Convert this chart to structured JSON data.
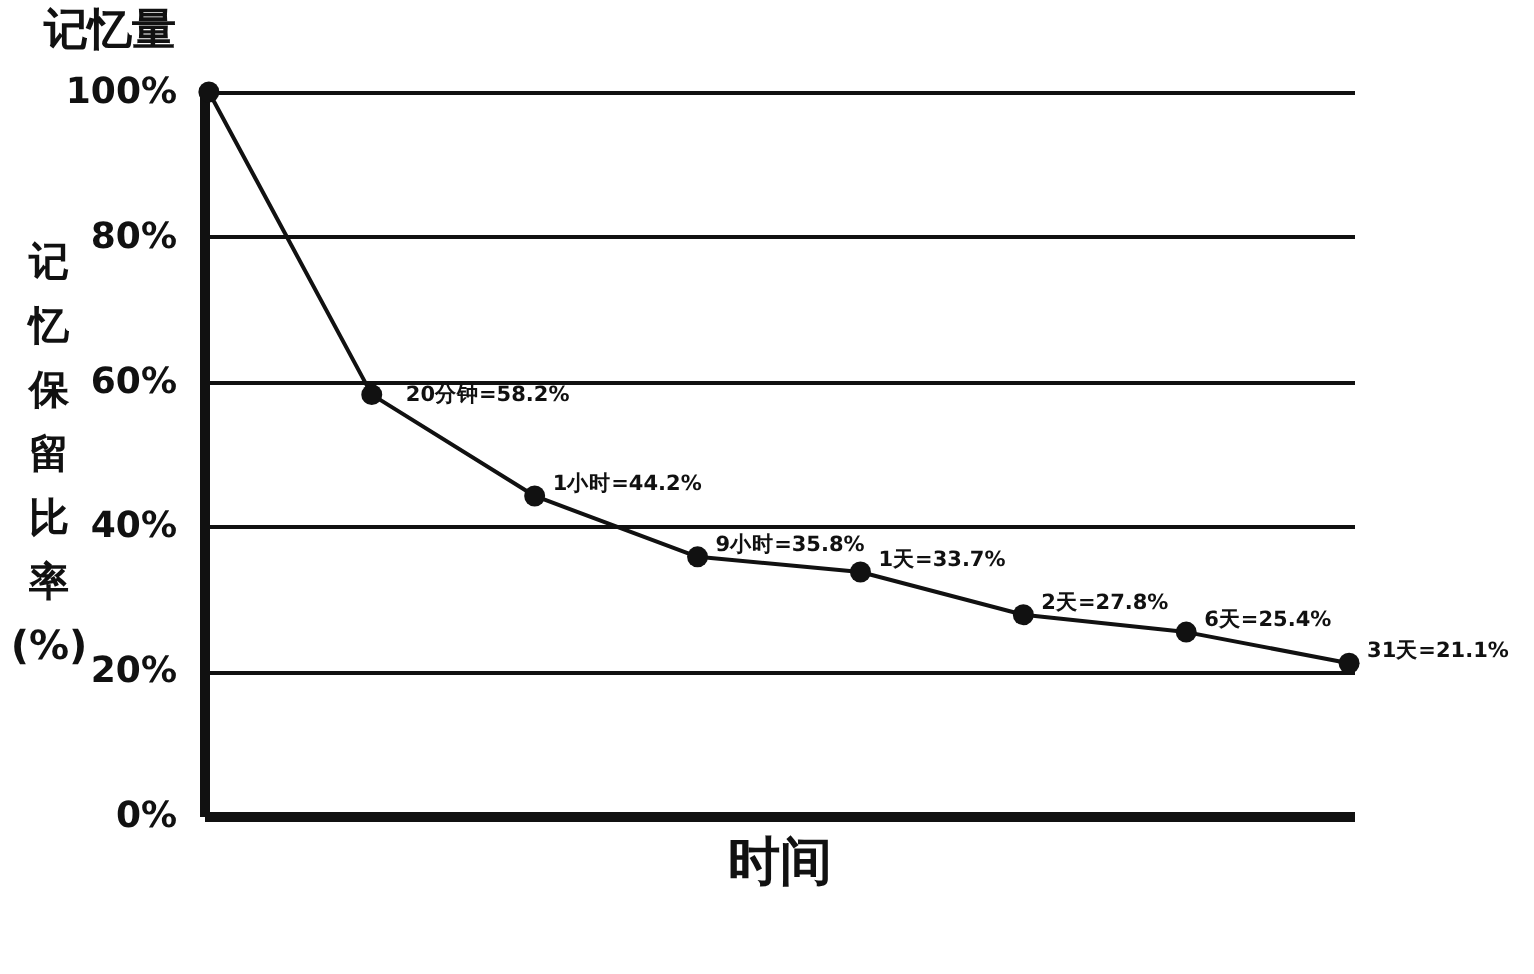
{
  "chart_data": {
    "type": "line",
    "title": "记忆量",
    "xlabel": "时间",
    "ylabel": "记忆保留比率(%)",
    "categories": [
      null,
      null,
      null,
      null,
      null,
      null,
      null,
      null
    ],
    "series": [
      {
        "color": "#111111",
        "values": [
          100,
          58.2,
          44.2,
          35.8,
          33.7,
          27.8,
          25.4,
          21.1
        ]
      }
    ],
    "value_labels": [
      null,
      "20分钟=58.2%",
      "1小时=44.2%",
      "9小时=35.8%",
      "1天=33.7%",
      "2天=27.8%",
      "6天=25.4%",
      "31天=21.1%"
    ],
    "ylim": [
      0,
      100
    ],
    "yticks": [
      {
        "value": 0,
        "label": "0%"
      },
      {
        "value": 20,
        "label": "20%"
      },
      {
        "value": 40,
        "label": "40%"
      },
      {
        "value": 60,
        "label": "60%"
      },
      {
        "value": 80,
        "label": "80%"
      },
      {
        "value": 100,
        "label": "100%"
      }
    ],
    "grid": "y",
    "marker": "circle",
    "line_style": "solid",
    "tick_labels": "y"
  }
}
